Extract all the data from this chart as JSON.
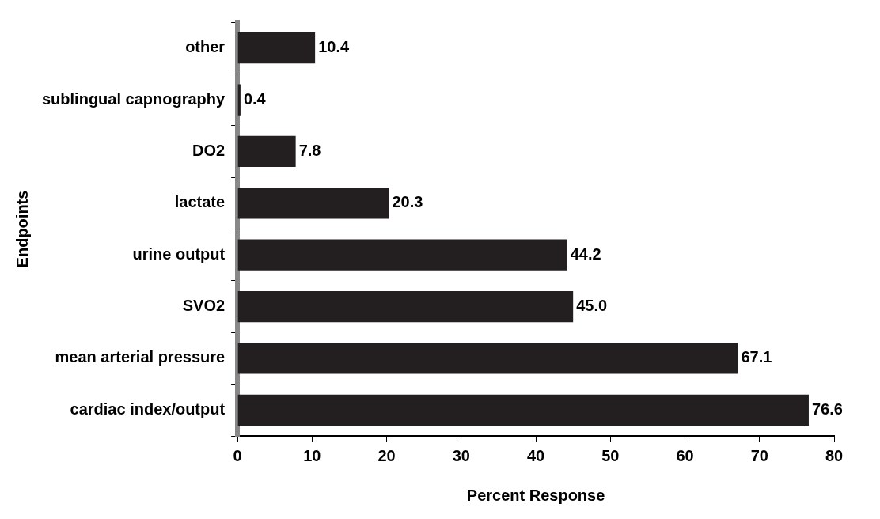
{
  "chart_data": {
    "type": "bar",
    "orientation": "horizontal",
    "xlabel": "Percent Response",
    "ylabel": "Endpoints",
    "categories": [
      "other",
      "sublingual capnography",
      "DO2",
      "lactate",
      "urine output",
      "SVO2",
      "mean arterial pressure",
      "cardiac index/output"
    ],
    "values": [
      10.4,
      0.4,
      7.8,
      20.3,
      44.2,
      45.0,
      67.1,
      76.6
    ],
    "value_labels": [
      "10.4",
      "0.4",
      "7.8",
      "20.3",
      "44.2",
      "45.0",
      "67.1",
      "76.6"
    ],
    "color": "#231f20",
    "xlim": [
      0,
      80
    ],
    "xticks": [
      0,
      10,
      20,
      30,
      40,
      50,
      60,
      70,
      80
    ],
    "grid": false,
    "legend": false
  }
}
